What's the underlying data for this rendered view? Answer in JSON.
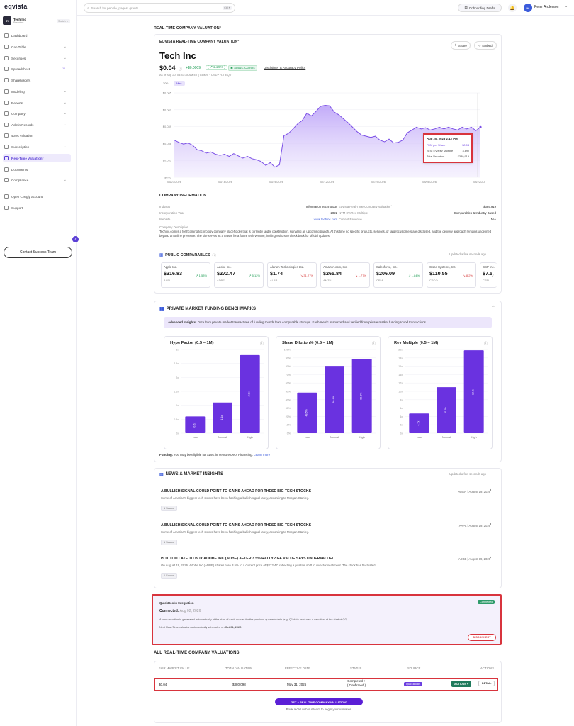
{
  "app": {
    "logo": "eqvista"
  },
  "company": {
    "initials": "TI",
    "name": "Tech Inc",
    "plan": "Premium",
    "switch_label": "Switch"
  },
  "sidebar": {
    "items": [
      {
        "label": "Dashboard",
        "icon": "dashboard-icon"
      },
      {
        "label": "Cap Table",
        "icon": "table-icon",
        "expandable": true
      },
      {
        "label": "Securities",
        "icon": "securities-icon",
        "expandable": true
      },
      {
        "label": "Spreadsheet",
        "icon": "spreadsheet-icon",
        "badge": "10"
      },
      {
        "label": "Shareholders",
        "icon": "shareholders-icon"
      },
      {
        "label": "Modeling",
        "icon": "modeling-icon",
        "expandable": true
      },
      {
        "label": "Reports",
        "icon": "reports-icon",
        "expandable": true
      },
      {
        "label": "Company",
        "icon": "company-icon",
        "expandable": true
      },
      {
        "label": "Admin Records",
        "icon": "records-icon",
        "expandable": true
      },
      {
        "label": "409A Valuation",
        "icon": "valuation-icon"
      },
      {
        "label": "Subscription",
        "icon": "subscription-icon",
        "expandable": true
      },
      {
        "label": "Real-Time Valuation°",
        "icon": "chart-icon",
        "active": true
      },
      {
        "label": "Documents",
        "icon": "documents-icon"
      },
      {
        "label": "Compliance",
        "icon": "compliance-icon",
        "expandable": true
      },
      {
        "label": "Open Chegly account",
        "icon": "chegly-icon"
      },
      {
        "label": "Support",
        "icon": "support-icon"
      }
    ],
    "contact_button": "Contact Success Team"
  },
  "topbar": {
    "search_placeholder": "Search for people, pages, grants",
    "search_shortcut": "Ctrl K",
    "drafts_button": "Onboarding Drafts",
    "user_initials": "PA",
    "user_name": "Peter Anderson"
  },
  "page": {
    "section_title": "REAL-TIME COMPANY VALUATION°"
  },
  "valuation": {
    "header": "EQVISTA REAL-TIME COMPANY VALUATION°",
    "share_button": "Share",
    "embed_button": "Embed",
    "company_name": "Tech Inc",
    "price": "$0.04",
    "change_abs": "+$0.0009",
    "change_pct": "2.29%",
    "status": "Status: Current",
    "disclaimer": "Disclaimer & Accuracy Policy",
    "as_of": "As of Aug 20, 04:43:38 AM ET | Closed * USD * R-T EQV",
    "range_tabs": [
      "30D",
      "Max"
    ]
  },
  "chart_data": {
    "type": "area",
    "y_ticks": [
      "$0.045",
      "$0.042",
      "$0.039",
      "$0.036",
      "$0.033",
      "$0.03"
    ],
    "x_ticks": [
      "05/23/2026",
      "06/16/2026",
      "06/28/2026",
      "07/12/2026",
      "07/25/2026",
      "08/08/2026",
      "08/22/2026"
    ],
    "ylim": [
      0.03,
      0.045
    ],
    "values": [
      0.0366,
      0.0362,
      0.0359,
      0.0361,
      0.0357,
      0.0349,
      0.0347,
      0.0343,
      0.0345,
      0.0341,
      0.0339,
      0.0341,
      0.0337,
      0.0342,
      0.0338,
      0.0334,
      0.0337,
      0.0333,
      0.0331,
      0.0328,
      0.0321,
      0.0326,
      0.0318,
      0.0322,
      0.0374,
      0.0378,
      0.0386,
      0.0395,
      0.0401,
      0.0414,
      0.0409,
      0.0417,
      0.0426,
      0.0428,
      0.0427,
      0.0416,
      0.0411,
      0.0404,
      0.0397,
      0.0389,
      0.0381,
      0.0375,
      0.0373,
      0.0371,
      0.0373,
      0.0366,
      0.0363,
      0.0368,
      0.0361,
      0.0362,
      0.0366,
      0.0379,
      0.0384,
      0.0389,
      0.0386,
      0.0388,
      0.0384,
      0.0386,
      0.0389,
      0.0386,
      0.0389,
      0.0386,
      0.0384,
      0.0389,
      0.0386,
      0.0389,
      0.0383,
      0.0389
    ]
  },
  "tooltip": {
    "date": "Aug 20, 2026 2:12 PM",
    "rows": [
      {
        "label": "FMV per Share",
        "value": "$0.04"
      },
      {
        "label": "NTM EV/Rev Multiple",
        "value": "3.89x"
      },
      {
        "label": "Total Valuation",
        "value": "$389,919"
      }
    ]
  },
  "company_info": {
    "title": "COMPANY INFORMATION",
    "left": [
      {
        "label": "Industry",
        "value": "Information Technology"
      },
      {
        "label": "Incorporation Year",
        "value": "2022"
      },
      {
        "label": "Website",
        "value": "www.techinc.com"
      }
    ],
    "right": [
      {
        "label": "Eqvista Real-Time Company Valuation°",
        "value": "$389,919"
      },
      {
        "label": "NTM EV/Rev Multiple",
        "value": "Comparables & Industry Based"
      },
      {
        "label": "Current Revenue",
        "value": "N/A"
      }
    ],
    "desc_label": "Company Description",
    "description": "Techinc.com is a forthcoming technology company placeholder that is currently under construction, signaling an upcoming launch. At this time no specific products, services, or target customers are disclosed, and the delivery approach remains undefined beyond an online presence. The site serves as a teaser for a future tech venture, inviting visitors to check back for official updates."
  },
  "comparables": {
    "title": "PUBLIC COMPARABLES",
    "updated": "Updated a few seconds ago",
    "items": [
      {
        "name": "Apple Inc.",
        "price": "$316.83",
        "change": "1.53%",
        "dir": "up",
        "ticker": "AAPL"
      },
      {
        "name": "Adobe Inc.",
        "price": "$272.47",
        "change": "5.12%",
        "dir": "up",
        "ticker": "ADBE"
      },
      {
        "name": "Alarum Technologies Ltd.",
        "price": "$1.74",
        "change": "31.27%",
        "dir": "down",
        "ticker": "ALAR"
      },
      {
        "name": "Amazon.com, Inc.",
        "price": "$265.84",
        "change": "1.77%",
        "dir": "down",
        "ticker": "AMZN"
      },
      {
        "name": "Salesforce, Inc.",
        "price": "$206.09",
        "change": "1.84%",
        "dir": "up",
        "ticker": "CRM"
      },
      {
        "name": "Cisco Systems, Inc.",
        "price": "$110.55",
        "change": "8.2%",
        "dir": "down",
        "ticker": "CSCO"
      },
      {
        "name": "CSP Inc.",
        "price": "$7.5",
        "change": "",
        "dir": "up",
        "ticker": "CSPI"
      }
    ]
  },
  "benchmarks": {
    "title": "PRIVATE MARKET FUNDING BENCHMARKS",
    "insight_label": "Advanced Insights:",
    "insight_text": "Data from private market transactions of funding rounds from comparable startups. Each metric is sourced and verified from private market funding round transactions.",
    "funding_label": "Funding:",
    "funding_text": "You may be eligible for $19K in Venture Debt Financing.",
    "learn_more": "Learn more",
    "charts": [
      {
        "title": "Hype Factor (0.5 – 1M)",
        "y_ticks": [
          "3x",
          "2.5x",
          "2x",
          "1.5x",
          "1x",
          "0.5x",
          "0x"
        ],
        "max": 3,
        "categories": [
          "Low",
          "Normal",
          "High"
        ],
        "values": [
          0.6,
          1.1,
          2.8
        ],
        "labels": [
          "0.6x",
          "1.1x",
          "2.8x"
        ]
      },
      {
        "title": "Share Dilution% (0.5 – 1M)",
        "y_ticks": [
          "100%",
          "90%",
          "80%",
          "70%",
          "60%",
          "50%",
          "40%",
          "30%",
          "20%",
          "10%",
          "0%"
        ],
        "max": 100,
        "categories": [
          "Low",
          "Normal",
          "High"
        ],
        "values": [
          48.5,
          80.4,
          88.8
        ],
        "labels": [
          "48.5%",
          "80.4%",
          "88.8%"
        ]
      },
      {
        "title": "Rev Multiple (0.5 – 1M)",
        "y_ticks": [
          "20x",
          "18x",
          "16x",
          "14x",
          "12x",
          "10x",
          "8x",
          "6x",
          "4x",
          "2x",
          "0x"
        ],
        "max": 20,
        "categories": [
          "Low",
          "Normal",
          "High"
        ],
        "values": [
          4.7,
          11.0,
          19.8
        ],
        "labels": [
          "4.7x",
          "11.0x",
          "19.8x"
        ]
      }
    ]
  },
  "news": {
    "title": "NEWS & MARKET INSIGHTS",
    "updated": "Updated a few seconds ago",
    "items": [
      {
        "headline": "A BULLISH SIGNAL COULD POINT TO GAINS AHEAD FOR THESE BIG TECH STOCKS",
        "desc": "Some of America's biggest tech stocks have been flashing a bullish signal lately, according to Morgan Stanley.",
        "source": "1 Source",
        "meta": "AMZN | August 19, 2026"
      },
      {
        "headline": "A BULLISH SIGNAL COULD POINT TO GAINS AHEAD FOR THESE BIG TECH STOCKS",
        "desc": "Some of America's biggest tech stocks have been flashing a bullish signal lately, according to Morgan Stanley.",
        "source": "1 Source",
        "meta": "AAPL | August 19, 2026"
      },
      {
        "headline": "IS IT TOO LATE TO BUY ADOBE INC (ADBE) AFTER 3.5% RALLY? GF VALUE SAYS UNDERVALUED",
        "desc": "On August 19, 2026, Adobe Inc (ADBE) shares rose 3.5% to a current price of $272.47, reflecting a positive shift in investor sentiment. The stock has fluctuated",
        "source": "1 Source",
        "meta": "ADBE | August 19, 2026"
      }
    ]
  },
  "quickbooks": {
    "title": "QuickBooks Integration",
    "badge": "Connected",
    "connected_label": "Connected:",
    "connected_date": "Aug 02, 2026",
    "desc": "A new valuation is generated automatically at the start of each quarter for the previous quarter's data (e.g. Q1 data produces a valuation at the start of Q2).",
    "next_label": "Next Real-Time valuation automatically scheduled on",
    "next_date": "Oct 01, 2026",
    "disconnect": "DISCONNECT"
  },
  "valuations_table": {
    "title": "ALL REAL-TIME COMPANY VALUATIONS",
    "headers": [
      "FAIR MARKET VALUE",
      "TOTAL VALUATION",
      "EFFECTIVE DATE",
      "STATUS",
      "SOURCE",
      "ACTIONS"
    ],
    "row": {
      "fmv": "$0.04",
      "total": "$380,098",
      "date": "May 31, 2026",
      "status_1": "Completed +",
      "status_2": "( Confirmed )",
      "source": "QuickBooks",
      "actions": "ACTIONS",
      "details": "DETAIL"
    },
    "cta_button": "GET A REAL-TIME COMPANY VALUATION°",
    "cta_sub": "Book a call with our team to begin your valuation"
  },
  "colors": {
    "accent": "#6a3ee0",
    "brand_dark": "#1b1b2b",
    "highlight_red": "#d8343d",
    "up": "#1f9d55",
    "down": "#d63a3a"
  }
}
